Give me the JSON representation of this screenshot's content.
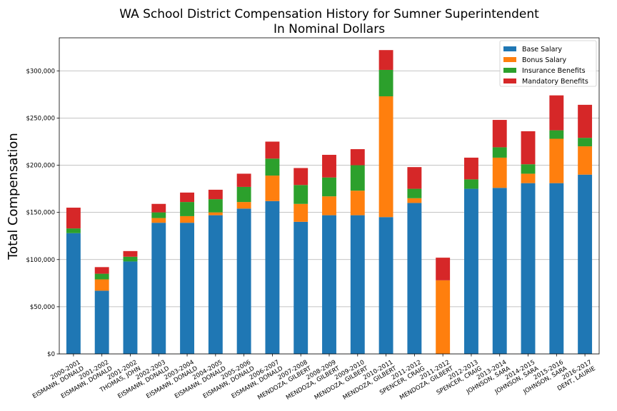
{
  "chart_data": {
    "type": "bar",
    "stacked": true,
    "title": "WA School District Compensation History for Sumner Superintendent",
    "subtitle": "In Nominal Dollars",
    "xlabel": "",
    "ylabel": "Total Compensation",
    "ylim": [
      0,
      335000
    ],
    "yticks": [
      0,
      50000,
      100000,
      150000,
      200000,
      250000,
      300000
    ],
    "ytick_labels": [
      "$0",
      "$50,000",
      "$100,000",
      "$150,000",
      "$200,000",
      "$250,000",
      "$300,000"
    ],
    "grid": true,
    "legend_position": "top-right",
    "categories": [
      "2000-2001\nEISMANN, DONALD",
      "2001-2002\nEISMANN, DONALD",
      "2001-2002\nTHOMAS, JOHN",
      "2002-2003\nEISMANN, DONALD",
      "2003-2004\nEISMANN, DONALD",
      "2004-2005\nEISMANN, DONALD",
      "2005-2006\nEISMANN, DONALD",
      "2006-2007\nEISMANN, DONALD",
      "2007-2008\nMENDOZA, GILBERT",
      "2008-2009\nMENDOZA, GILBERT",
      "2009-2010\nMENDOZA, GILBERT",
      "2010-2011\nMENDOZA, GILBERT",
      "2011-2012\nSPENCER, CRAIG",
      "2011-2012\nMENDOZA, GILBERT",
      "2012-2013\nSPENCER, CRAIG",
      "2013-2014\nJOHNSON, SARA",
      "2014-2015\nJOHNSON, SARA",
      "2015-2016\nJOHNSON, SARA",
      "2016-2017\nDENT, LAURIE"
    ],
    "series": [
      {
        "name": "Base Salary",
        "color": "#1f77b4",
        "values": [
          128000,
          67000,
          98000,
          139000,
          139000,
          147000,
          154000,
          162000,
          140000,
          147000,
          147000,
          145000,
          160000,
          0,
          175000,
          176000,
          181000,
          181000,
          190000
        ]
      },
      {
        "name": "Bonus Salary",
        "color": "#ff7f0e",
        "values": [
          0,
          12000,
          0,
          5000,
          7000,
          3000,
          7000,
          27000,
          19000,
          20000,
          26000,
          128000,
          5000,
          78000,
          0,
          32000,
          10000,
          47000,
          30000
        ]
      },
      {
        "name": "Insurance Benefits",
        "color": "#2ca02c",
        "values": [
          5000,
          6000,
          5000,
          6000,
          15000,
          14000,
          16000,
          18000,
          20000,
          20000,
          27000,
          28000,
          10000,
          0,
          10000,
          11000,
          10000,
          9000,
          9000
        ]
      },
      {
        "name": "Mandatory Benefits",
        "color": "#d62728",
        "values": [
          22000,
          7000,
          6000,
          9000,
          10000,
          10000,
          14000,
          18000,
          18000,
          24000,
          17000,
          21000,
          23000,
          24000,
          23000,
          29000,
          35000,
          37000,
          35000
        ]
      }
    ]
  }
}
